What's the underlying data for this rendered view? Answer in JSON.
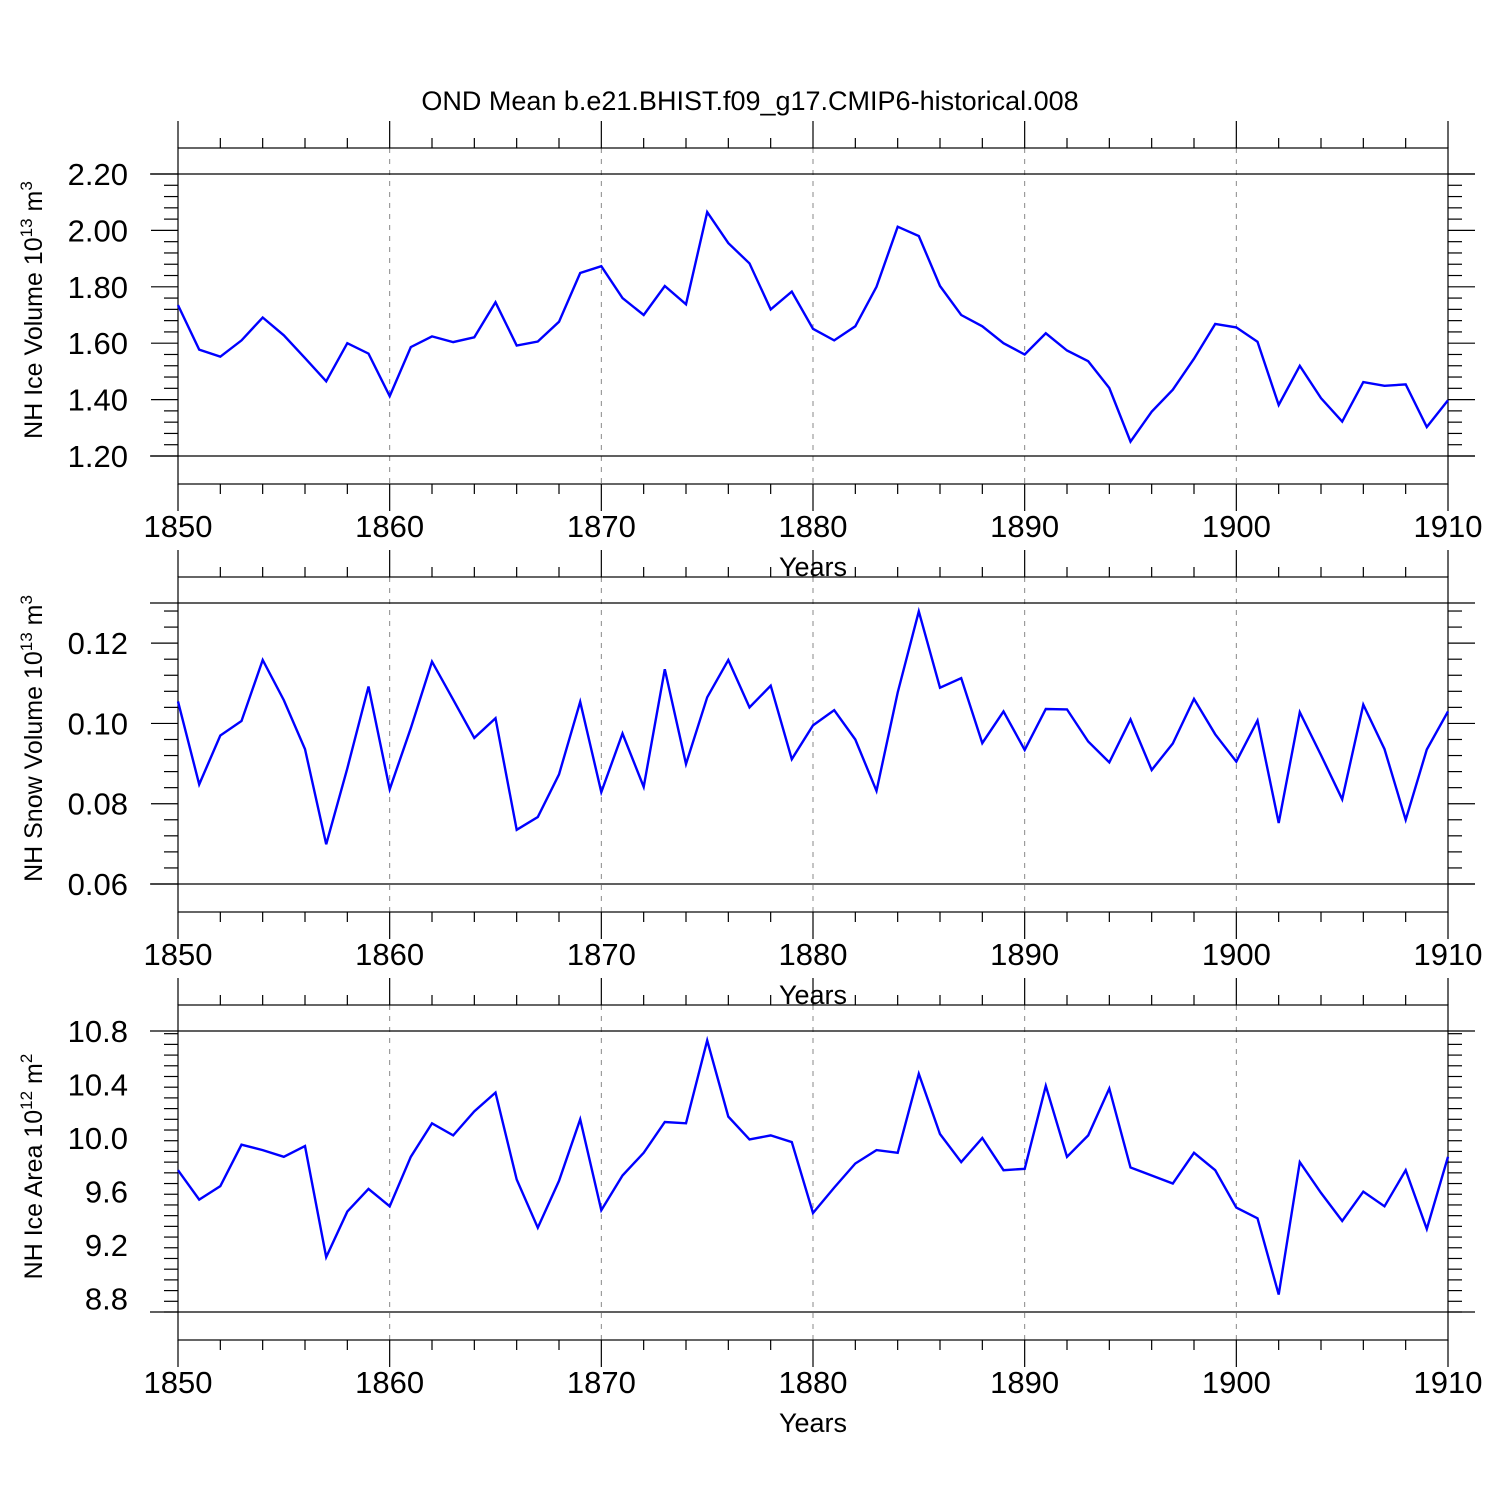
{
  "figure_title": "OND Mean b.e21.BHIST.f09_g17.CMIP6-historical.008",
  "chart_data": [
    {
      "type": "line",
      "title": "OND Mean b.e21.BHIST.f09_g17.CMIP6-historical.008",
      "xlabel": "Years",
      "ylabel_main": "NH Ice Volume 10",
      "ylabel_exp": "13",
      "ylabel_unit": " m",
      "ylabel_unit_exp": "3",
      "xlim": [
        1850,
        1910
      ],
      "ylim": [
        1.2,
        2.2
      ],
      "xticks": [
        1850,
        1860,
        1870,
        1880,
        1890,
        1900,
        1910
      ],
      "xtick_labels": [
        "1850",
        "1860",
        "1870",
        "1880",
        "1890",
        "1900",
        "1910"
      ],
      "yticks": [
        1.2,
        1.4,
        1.6,
        1.8,
        2.0,
        2.2
      ],
      "ytick_labels": [
        "1.20",
        "1.40",
        "1.60",
        "1.80",
        "2.00",
        "2.20"
      ],
      "grid": "dashed vertical at major x ticks",
      "color": "#0000ff",
      "x": [
        1850,
        1851,
        1852,
        1853,
        1854,
        1855,
        1856,
        1857,
        1858,
        1859,
        1860,
        1861,
        1862,
        1863,
        1864,
        1865,
        1866,
        1867,
        1868,
        1869,
        1870,
        1871,
        1872,
        1873,
        1874,
        1875,
        1876,
        1877,
        1878,
        1879,
        1880,
        1881,
        1882,
        1883,
        1884,
        1885,
        1886,
        1887,
        1888,
        1889,
        1890,
        1891,
        1892,
        1893,
        1894,
        1895,
        1896,
        1897,
        1898,
        1899,
        1900,
        1901,
        1902,
        1903,
        1904,
        1905,
        1906,
        1907,
        1908,
        1909,
        1910
      ],
      "values": [
        1.735,
        1.577,
        1.552,
        1.61,
        1.691,
        1.628,
        1.547,
        1.465,
        1.6,
        1.563,
        1.412,
        1.586,
        1.624,
        1.604,
        1.621,
        1.745,
        1.592,
        1.606,
        1.676,
        1.849,
        1.873,
        1.76,
        1.7,
        1.803,
        1.738,
        2.065,
        1.955,
        1.883,
        1.72,
        1.783,
        1.651,
        1.61,
        1.66,
        1.8,
        2.013,
        1.98,
        1.803,
        1.7,
        1.66,
        1.6,
        1.56,
        1.635,
        1.574,
        1.536,
        1.441,
        1.251,
        1.357,
        1.435,
        1.545,
        1.668,
        1.656,
        1.605,
        1.381,
        1.52,
        1.405,
        1.322,
        1.462,
        1.449,
        1.454,
        1.303,
        1.398
      ]
    },
    {
      "type": "line",
      "xlabel": "Years",
      "ylabel_main": "NH Snow Volume 10",
      "ylabel_exp": "13",
      "ylabel_unit": " m",
      "ylabel_unit_exp": "3",
      "xlim": [
        1850,
        1910
      ],
      "ylim": [
        0.06,
        0.13
      ],
      "xticks": [
        1850,
        1860,
        1870,
        1880,
        1890,
        1900,
        1910
      ],
      "xtick_labels": [
        "1850",
        "1860",
        "1870",
        "1880",
        "1890",
        "1900",
        "1910"
      ],
      "yticks": [
        0.06,
        0.08,
        0.1,
        0.12
      ],
      "ytick_labels": [
        "0.06",
        "0.08",
        "0.10",
        "0.12"
      ],
      "grid": "dashed vertical at major x ticks",
      "color": "#0000ff",
      "x": [
        1850,
        1851,
        1852,
        1853,
        1854,
        1855,
        1856,
        1857,
        1858,
        1859,
        1860,
        1861,
        1862,
        1863,
        1864,
        1865,
        1866,
        1867,
        1868,
        1869,
        1870,
        1871,
        1872,
        1873,
        1874,
        1875,
        1876,
        1877,
        1878,
        1879,
        1880,
        1881,
        1882,
        1883,
        1884,
        1885,
        1886,
        1887,
        1888,
        1889,
        1890,
        1891,
        1892,
        1893,
        1894,
        1895,
        1896,
        1897,
        1898,
        1899,
        1900,
        1901,
        1902,
        1903,
        1904,
        1905,
        1906,
        1907,
        1908,
        1909,
        1910
      ],
      "values": [
        0.1055,
        0.0848,
        0.097,
        0.1006,
        0.1158,
        0.1058,
        0.0936,
        0.0699,
        0.0888,
        0.1092,
        0.0836,
        0.0988,
        0.1154,
        0.1059,
        0.0964,
        0.1013,
        0.0735,
        0.0767,
        0.0873,
        0.1054,
        0.0829,
        0.0975,
        0.0842,
        0.1135,
        0.0899,
        0.1065,
        0.1158,
        0.104,
        0.1094,
        0.0911,
        0.0995,
        0.1033,
        0.096,
        0.0832,
        0.1077,
        0.1279,
        0.1089,
        0.1113,
        0.0951,
        0.103,
        0.0934,
        0.1036,
        0.1035,
        0.0955,
        0.0903,
        0.101,
        0.0884,
        0.095,
        0.1061,
        0.0973,
        0.0905,
        0.1007,
        0.0752,
        0.1028,
        0.0921,
        0.0811,
        0.1047,
        0.0936,
        0.076,
        0.0935,
        0.103
      ]
    },
    {
      "type": "line",
      "xlabel": "Years",
      "ylabel_main": "NH Ice Area 10",
      "ylabel_exp": "12",
      "ylabel_unit": " m",
      "ylabel_unit_exp": "2",
      "xlim": [
        1850,
        1910
      ],
      "ylim": [
        8.7,
        10.8
      ],
      "xticks": [
        1850,
        1860,
        1870,
        1880,
        1890,
        1900,
        1910
      ],
      "xtick_labels": [
        "1850",
        "1860",
        "1870",
        "1880",
        "1890",
        "1900",
        "1910"
      ],
      "yticks": [
        8.8,
        9.2,
        9.6,
        10.0,
        10.4,
        10.8
      ],
      "ytick_labels": [
        "8.8",
        "9.2",
        "9.6",
        "10.0",
        "10.4",
        "10.8"
      ],
      "grid": "dashed vertical at major x ticks",
      "color": "#0000ff",
      "x": [
        1850,
        1851,
        1852,
        1853,
        1854,
        1855,
        1856,
        1857,
        1858,
        1859,
        1860,
        1861,
        1862,
        1863,
        1864,
        1865,
        1866,
        1867,
        1868,
        1869,
        1870,
        1871,
        1872,
        1873,
        1874,
        1875,
        1876,
        1877,
        1878,
        1879,
        1880,
        1881,
        1882,
        1883,
        1884,
        1885,
        1886,
        1887,
        1888,
        1889,
        1890,
        1891,
        1892,
        1893,
        1894,
        1895,
        1896,
        1897,
        1898,
        1899,
        1900,
        1901,
        1902,
        1903,
        1904,
        1905,
        1906,
        1907,
        1908,
        1909,
        1910
      ],
      "values": [
        9.76,
        9.54,
        9.64,
        9.95,
        9.91,
        9.86,
        9.94,
        9.11,
        9.45,
        9.62,
        9.49,
        9.86,
        10.11,
        10.02,
        10.2,
        10.34,
        9.69,
        9.33,
        9.68,
        10.14,
        9.46,
        9.72,
        9.89,
        10.12,
        10.11,
        10.73,
        10.16,
        9.99,
        10.02,
        9.97,
        9.44,
        9.63,
        9.81,
        9.91,
        9.89,
        10.48,
        10.03,
        9.82,
        10.0,
        9.76,
        9.77,
        10.39,
        9.86,
        10.02,
        10.37,
        9.78,
        9.72,
        9.66,
        9.89,
        9.76,
        9.48,
        9.4,
        8.83,
        9.82,
        9.59,
        9.38,
        9.6,
        9.49,
        9.76,
        9.32,
        9.86
      ]
    }
  ]
}
